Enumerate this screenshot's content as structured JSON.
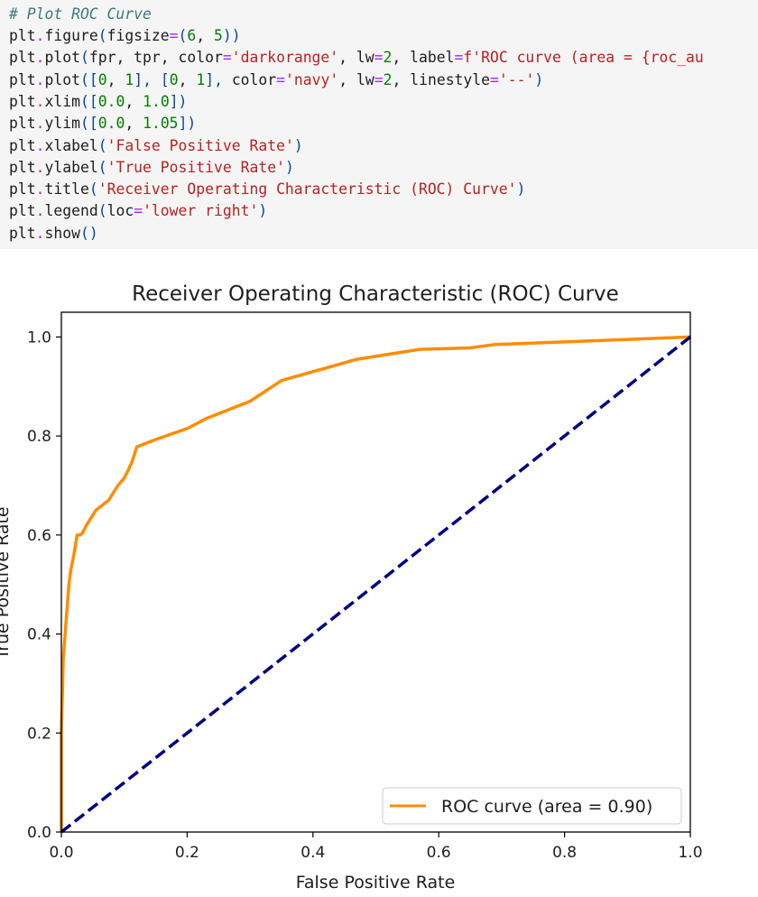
{
  "notebook": {
    "code_cell": {
      "comment": "# Plot ROC Curve",
      "lines": [
        [
          {
            "t": "plt",
            "c": "id"
          },
          {
            "t": ".",
            "c": "op"
          },
          {
            "t": "figure",
            "c": "id"
          },
          {
            "t": "(",
            "c": "p"
          },
          {
            "t": "figsize",
            "c": "id"
          },
          {
            "t": "=",
            "c": "op"
          },
          {
            "t": "(",
            "c": "p"
          },
          {
            "t": "6",
            "c": "num"
          },
          {
            "t": ", ",
            "c": "id"
          },
          {
            "t": "5",
            "c": "num"
          },
          {
            "t": "))",
            "c": "p"
          }
        ],
        [
          {
            "t": "plt",
            "c": "id"
          },
          {
            "t": ".",
            "c": "op"
          },
          {
            "t": "plot",
            "c": "id"
          },
          {
            "t": "(",
            "c": "p"
          },
          {
            "t": "fpr, tpr, color",
            "c": "id"
          },
          {
            "t": "=",
            "c": "op"
          },
          {
            "t": "'darkorange'",
            "c": "str"
          },
          {
            "t": ", lw",
            "c": "id"
          },
          {
            "t": "=",
            "c": "op"
          },
          {
            "t": "2",
            "c": "num"
          },
          {
            "t": ", label",
            "c": "id"
          },
          {
            "t": "=",
            "c": "op"
          },
          {
            "t": "f'ROC curve (area = {roc_au",
            "c": "str"
          }
        ],
        [
          {
            "t": "plt",
            "c": "id"
          },
          {
            "t": ".",
            "c": "op"
          },
          {
            "t": "plot",
            "c": "id"
          },
          {
            "t": "([",
            "c": "p"
          },
          {
            "t": "0",
            "c": "num"
          },
          {
            "t": ", ",
            "c": "id"
          },
          {
            "t": "1",
            "c": "num"
          },
          {
            "t": "], [",
            "c": "p"
          },
          {
            "t": "0",
            "c": "num"
          },
          {
            "t": ", ",
            "c": "id"
          },
          {
            "t": "1",
            "c": "num"
          },
          {
            "t": "], ",
            "c": "p"
          },
          {
            "t": "color",
            "c": "id"
          },
          {
            "t": "=",
            "c": "op"
          },
          {
            "t": "'navy'",
            "c": "str"
          },
          {
            "t": ", lw",
            "c": "id"
          },
          {
            "t": "=",
            "c": "op"
          },
          {
            "t": "2",
            "c": "num"
          },
          {
            "t": ", linestyle",
            "c": "id"
          },
          {
            "t": "=",
            "c": "op"
          },
          {
            "t": "'--'",
            "c": "str"
          },
          {
            "t": ")",
            "c": "p"
          }
        ],
        [
          {
            "t": "plt",
            "c": "id"
          },
          {
            "t": ".",
            "c": "op"
          },
          {
            "t": "xlim",
            "c": "id"
          },
          {
            "t": "([",
            "c": "p"
          },
          {
            "t": "0.0",
            "c": "num"
          },
          {
            "t": ", ",
            "c": "id"
          },
          {
            "t": "1.0",
            "c": "num"
          },
          {
            "t": "])",
            "c": "p"
          }
        ],
        [
          {
            "t": "plt",
            "c": "id"
          },
          {
            "t": ".",
            "c": "op"
          },
          {
            "t": "ylim",
            "c": "id"
          },
          {
            "t": "([",
            "c": "p"
          },
          {
            "t": "0.0",
            "c": "num"
          },
          {
            "t": ", ",
            "c": "id"
          },
          {
            "t": "1.05",
            "c": "num"
          },
          {
            "t": "])",
            "c": "p"
          }
        ],
        [
          {
            "t": "plt",
            "c": "id"
          },
          {
            "t": ".",
            "c": "op"
          },
          {
            "t": "xlabel",
            "c": "id"
          },
          {
            "t": "(",
            "c": "p"
          },
          {
            "t": "'False Positive Rate'",
            "c": "str"
          },
          {
            "t": ")",
            "c": "p"
          }
        ],
        [
          {
            "t": "plt",
            "c": "id"
          },
          {
            "t": ".",
            "c": "op"
          },
          {
            "t": "ylabel",
            "c": "id"
          },
          {
            "t": "(",
            "c": "p"
          },
          {
            "t": "'True Positive Rate'",
            "c": "str"
          },
          {
            "t": ")",
            "c": "p"
          }
        ],
        [
          {
            "t": "plt",
            "c": "id"
          },
          {
            "t": ".",
            "c": "op"
          },
          {
            "t": "title",
            "c": "id"
          },
          {
            "t": "(",
            "c": "p"
          },
          {
            "t": "'Receiver Operating Characteristic (ROC) Curve'",
            "c": "str"
          },
          {
            "t": ")",
            "c": "p"
          }
        ],
        [
          {
            "t": "plt",
            "c": "id"
          },
          {
            "t": ".",
            "c": "op"
          },
          {
            "t": "legend",
            "c": "id"
          },
          {
            "t": "(",
            "c": "p"
          },
          {
            "t": "loc",
            "c": "id"
          },
          {
            "t": "=",
            "c": "op"
          },
          {
            "t": "'lower right'",
            "c": "str"
          },
          {
            "t": ")",
            "c": "p"
          }
        ],
        [
          {
            "t": "plt",
            "c": "id"
          },
          {
            "t": ".",
            "c": "op"
          },
          {
            "t": "show",
            "c": "id"
          },
          {
            "t": "()",
            "c": "p"
          }
        ]
      ]
    }
  },
  "chart_data": {
    "type": "line",
    "title": "Receiver Operating Characteristic (ROC) Curve",
    "xlabel": "False Positive Rate",
    "ylabel": "True Positive Rate",
    "xlim": [
      0.0,
      1.0
    ],
    "ylim": [
      0.0,
      1.05
    ],
    "xticks": [
      "0.0",
      "0.2",
      "0.4",
      "0.6",
      "0.8",
      "1.0"
    ],
    "yticks": [
      "0.0",
      "0.2",
      "0.4",
      "0.6",
      "0.8",
      "1.0"
    ],
    "grid": false,
    "legend_position": "lower right",
    "series": [
      {
        "name": "ROC curve (area = 0.90)",
        "color": "#ff8c00",
        "style": "solid",
        "x": [
          0.0,
          0.0,
          0.003,
          0.006,
          0.009,
          0.012,
          0.015,
          0.02,
          0.025,
          0.03,
          0.033,
          0.04,
          0.055,
          0.065,
          0.075,
          0.09,
          0.1,
          0.106,
          0.113,
          0.12,
          0.15,
          0.2,
          0.23,
          0.3,
          0.35,
          0.4,
          0.42,
          0.47,
          0.52,
          0.57,
          0.65,
          0.69,
          0.8,
          1.0
        ],
        "y": [
          0.0,
          0.2,
          0.35,
          0.4,
          0.45,
          0.5,
          0.53,
          0.56,
          0.6,
          0.6,
          0.603,
          0.62,
          0.65,
          0.66,
          0.67,
          0.7,
          0.715,
          0.73,
          0.75,
          0.778,
          0.793,
          0.815,
          0.835,
          0.87,
          0.912,
          0.93,
          0.937,
          0.955,
          0.965,
          0.975,
          0.978,
          0.985,
          0.99,
          1.0
        ]
      },
      {
        "name": "",
        "color": "#000080",
        "style": "dashed",
        "x": [
          0.0,
          1.0
        ],
        "y": [
          0.0,
          1.0
        ]
      }
    ],
    "legend": {
      "label": "ROC curve (area = 0.90)"
    }
  }
}
